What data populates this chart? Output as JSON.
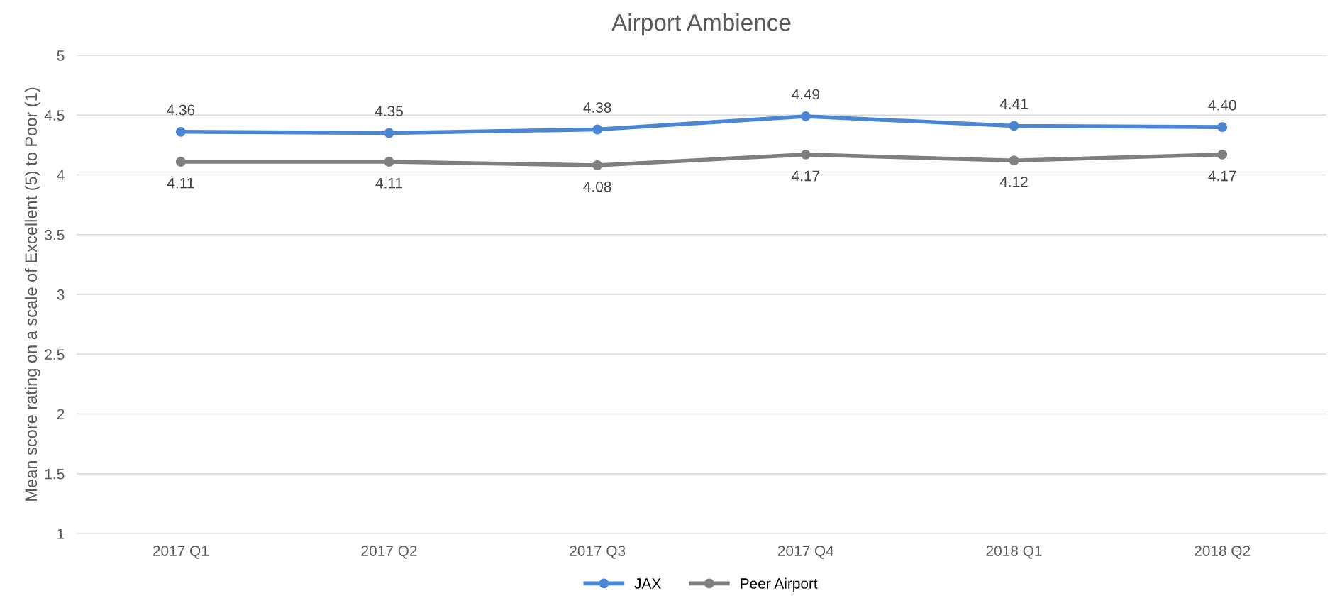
{
  "chart_data": {
    "type": "line",
    "title": "Airport Ambience",
    "ylabel": "Mean score rating on a scale of Excellent (5) to Poor (1)",
    "categories": [
      "2017 Q1",
      "2017 Q2",
      "2017 Q3",
      "2017 Q4",
      "2018 Q1",
      "2018 Q2"
    ],
    "series": [
      {
        "name": "JAX",
        "color": "#4a86d4",
        "values": [
          4.36,
          4.35,
          4.38,
          4.49,
          4.41,
          4.4
        ],
        "value_labels": [
          "4.36",
          "4.35",
          "4.38",
          "4.49",
          "4.41",
          "4.40"
        ]
      },
      {
        "name": "Peer Airport",
        "color": "#7f7f7f",
        "values": [
          4.11,
          4.11,
          4.08,
          4.17,
          4.12,
          4.17
        ],
        "value_labels": [
          "4.11",
          "4.11",
          "4.08",
          "4.17",
          "4.12",
          "4.17"
        ]
      }
    ],
    "ylim": [
      1,
      5
    ],
    "yticks": [
      1,
      1.5,
      2,
      2.5,
      3,
      3.5,
      4,
      4.5,
      5
    ],
    "grid": "y",
    "legend": "bottom",
    "marker": "circle",
    "line_style": "solid"
  }
}
